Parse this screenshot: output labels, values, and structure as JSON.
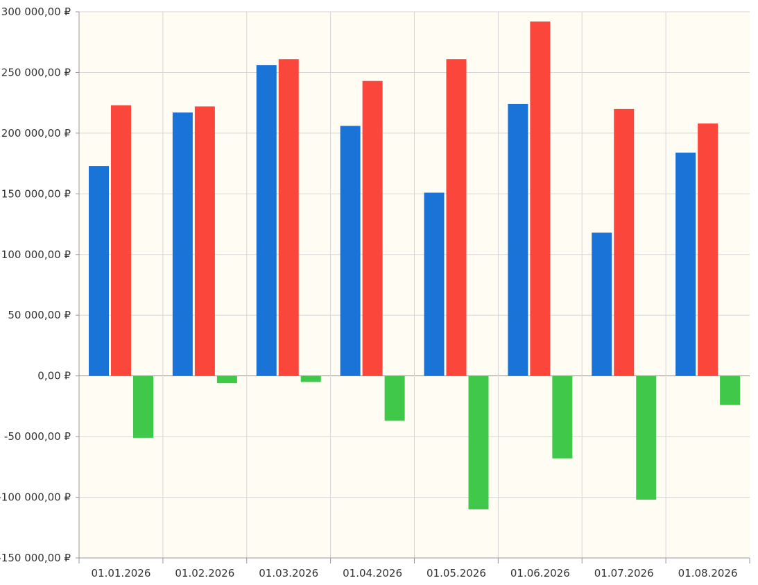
{
  "chart_data": {
    "type": "bar",
    "categories": [
      "01.01.2026",
      "01.02.2026",
      "01.03.2026",
      "01.04.2026",
      "01.05.2026",
      "01.06.2026",
      "01.07.2026",
      "01.08.2026"
    ],
    "series": [
      {
        "color": "#1a73d6",
        "values": [
          173000,
          217000,
          256000,
          206000,
          151000,
          224000,
          118000,
          184000
        ]
      },
      {
        "color": "#fb463b",
        "values": [
          223000,
          222000,
          261000,
          243000,
          261000,
          292000,
          220000,
          208000
        ]
      },
      {
        "color": "#40c84a",
        "values": [
          -51000,
          -6000,
          -5000,
          -37000,
          -110000,
          -68000,
          -102000,
          -24000
        ]
      }
    ],
    "ylim": [
      -150000,
      300000
    ],
    "yticks": [
      300000,
      250000,
      200000,
      150000,
      100000,
      50000,
      0,
      -50000,
      -100000,
      -150000
    ],
    "ytick_labels": [
      "300 000,00 ₽",
      "250 000,00 ₽",
      "200 000,00 ₽",
      "150 000,00 ₽",
      "100 000,00 ₽",
      "50 000,00 ₽",
      "0,00 ₽",
      "-50 000,00 ₽",
      "-100 000,00 ₽",
      "-150 000,00 ₽"
    ],
    "grid": true,
    "title": "",
    "xlabel": "",
    "ylabel": "",
    "legend": "none",
    "colors": {
      "plot_background": "#fffcf4",
      "grid": "#d6d6d6",
      "axis": "#999999"
    }
  }
}
